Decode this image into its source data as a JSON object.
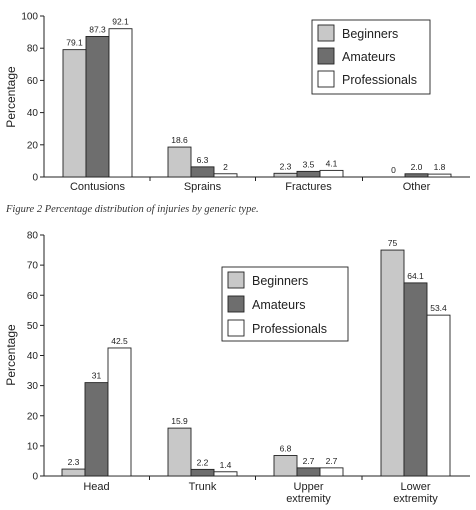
{
  "caption": "Figure 2   Percentage distribution of injuries by generic type.",
  "colors": {
    "beginners": "#c8c8c8",
    "amateurs": "#6e6e6e",
    "professionals": "#ffffff",
    "stroke": "#222222"
  },
  "chart_data": [
    {
      "type": "bar",
      "title": "",
      "xlabel": "",
      "ylabel": "Percentage",
      "ylim": [
        0,
        100
      ],
      "yticks": [
        0,
        20,
        40,
        60,
        80,
        100
      ],
      "grid": false,
      "legend": "top-right",
      "categories": [
        "Contusions",
        "Sprains",
        "Fractures",
        "Other"
      ],
      "series": [
        {
          "name": "Beginners",
          "values": [
            79.1,
            18.6,
            2.3,
            0
          ],
          "labels": [
            "79.1",
            "18.6",
            "2.3",
            "0"
          ]
        },
        {
          "name": "Amateurs",
          "values": [
            87.3,
            6.3,
            3.5,
            2.0
          ],
          "labels": [
            "87.3",
            "6.3",
            "3.5",
            "2.0"
          ]
        },
        {
          "name": "Professionals",
          "values": [
            92.1,
            2,
            4.1,
            1.8
          ],
          "labels": [
            "92.1",
            "2",
            "4.1",
            "1.8"
          ]
        }
      ]
    },
    {
      "type": "bar",
      "title": "",
      "xlabel": "",
      "ylabel": "Percentage",
      "ylim": [
        0,
        80
      ],
      "yticks": [
        0,
        10,
        20,
        30,
        40,
        50,
        60,
        70,
        80
      ],
      "grid": false,
      "legend": "center",
      "categories": [
        [
          "Head"
        ],
        [
          "Trunk"
        ],
        [
          "Upper",
          "extremity"
        ],
        [
          "Lower",
          "extremity"
        ]
      ],
      "series": [
        {
          "name": "Beginners",
          "values": [
            2.3,
            15.9,
            6.8,
            75
          ],
          "labels": [
            "2.3",
            "15.9",
            "6.8",
            "75"
          ]
        },
        {
          "name": "Amateurs",
          "values": [
            31,
            2.2,
            2.7,
            64.1
          ],
          "labels": [
            "31",
            "2.2",
            "2.7",
            "64.1"
          ]
        },
        {
          "name": "Professionals",
          "values": [
            42.5,
            1.4,
            2.7,
            53.4
          ],
          "labels": [
            "42.5",
            "1.4",
            "2.7",
            "53.4"
          ]
        }
      ]
    }
  ]
}
